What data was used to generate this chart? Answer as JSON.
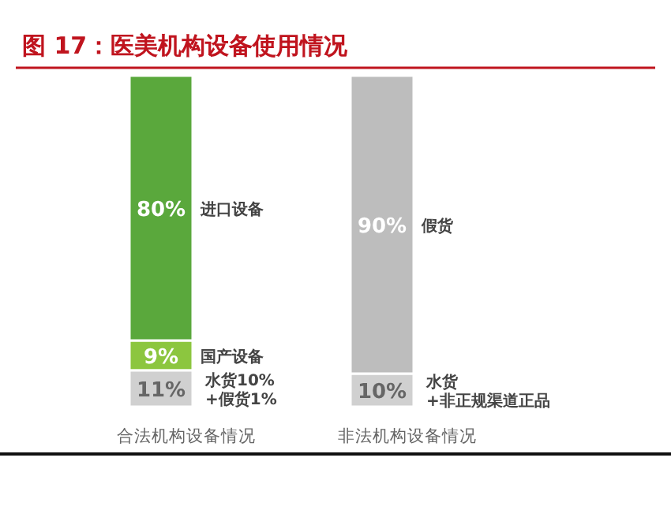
{
  "chart_data": {
    "type": "bar",
    "stacked": true,
    "title": "图 17：医美机构设备使用情况",
    "categories": [
      "合法机构设备情况",
      "非法机构设备情况"
    ],
    "series": [
      {
        "color": "#d0d0d0",
        "values": [
          11,
          10
        ],
        "value_labels": [
          "11%",
          "10%"
        ]
      },
      {
        "name": "国产设备",
        "color": "#8cc63f",
        "values": [
          9,
          null
        ],
        "value_labels": [
          "9%",
          null
        ]
      },
      {
        "name": "进口设备",
        "color": "#5aa83c",
        "values": [
          80,
          null
        ],
        "value_labels": [
          "80%",
          null
        ]
      },
      {
        "name": "假货",
        "color": "#bdbdbd",
        "values": [
          null,
          90
        ],
        "value_labels": [
          null,
          "90%"
        ]
      }
    ],
    "annotations": [
      "水货10%+假货1%",
      "水货+非正规渠道正品"
    ]
  }
}
